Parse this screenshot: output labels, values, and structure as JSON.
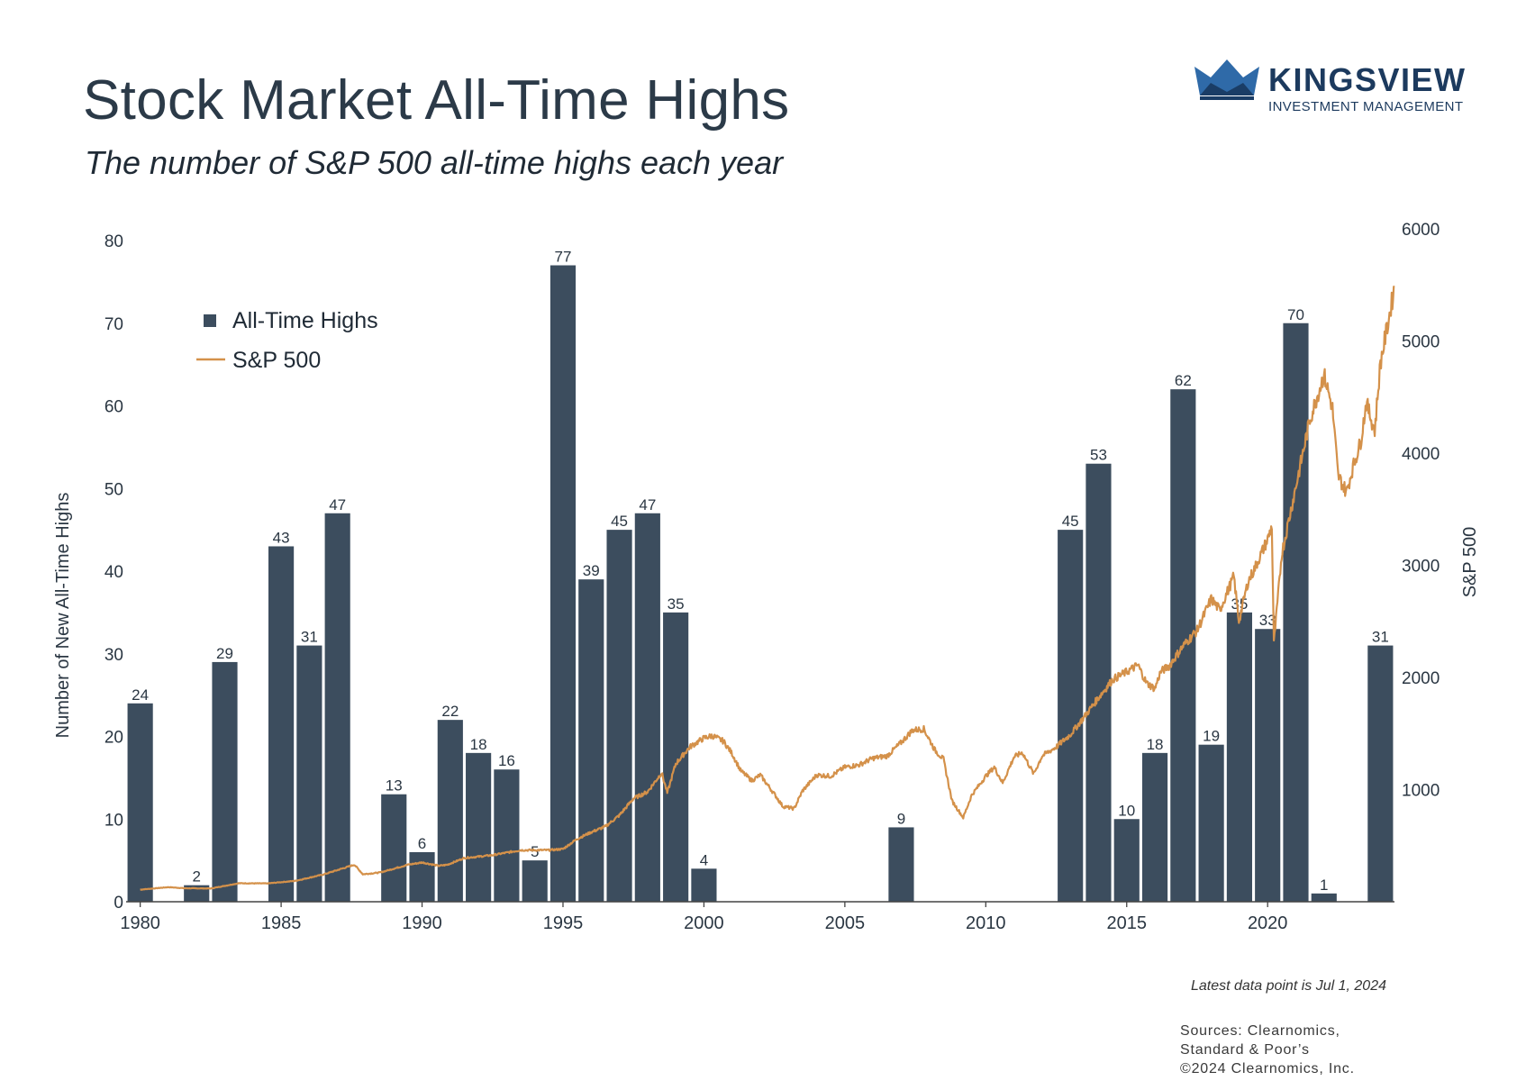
{
  "header": {
    "title": "Stock Market All-Time Highs",
    "subtitle": "The number of S&P 500 all-time highs each year"
  },
  "logo": {
    "name": "KINGSVIEW",
    "tagline": "INVESTMENT MANAGEMENT"
  },
  "footnote": "Latest data point is Jul 1, 2024",
  "sources": [
    "Sources: Clearnomics,",
    "Standard & Poor’s",
    "©2024 Clearnomics, Inc."
  ],
  "colors": {
    "bar": "#3c4d5e",
    "line": "#d4914a",
    "text": "#2a3642"
  },
  "chart_data": {
    "type": "bar",
    "title": "Stock Market All-Time Highs",
    "subtitle": "The number of S&P 500 all-time highs each year",
    "ylabel": "Number of New All-Time Highs",
    "y2label": "S&P 500",
    "ylim": [
      0,
      80
    ],
    "y2lim": [
      0,
      6000
    ],
    "yticks": [
      0,
      10,
      20,
      30,
      40,
      50,
      60,
      70,
      80
    ],
    "y2ticks": [
      1000,
      2000,
      3000,
      4000,
      5000,
      6000
    ],
    "xticks": [
      1980,
      1985,
      1990,
      1995,
      2000,
      2005,
      2010,
      2015,
      2020
    ],
    "legend_position": "top-left",
    "series": [
      {
        "name": "All-Time Highs",
        "type": "bar",
        "data": [
          {
            "year": 1980,
            "value": 24
          },
          {
            "year": 1982,
            "value": 2
          },
          {
            "year": 1983,
            "value": 29
          },
          {
            "year": 1985,
            "value": 43
          },
          {
            "year": 1986,
            "value": 31
          },
          {
            "year": 1987,
            "value": 47
          },
          {
            "year": 1989,
            "value": 13
          },
          {
            "year": 1990,
            "value": 6
          },
          {
            "year": 1991,
            "value": 22
          },
          {
            "year": 1992,
            "value": 18
          },
          {
            "year": 1993,
            "value": 16
          },
          {
            "year": 1994,
            "value": 5
          },
          {
            "year": 1995,
            "value": 77
          },
          {
            "year": 1996,
            "value": 39
          },
          {
            "year": 1997,
            "value": 45
          },
          {
            "year": 1998,
            "value": 47
          },
          {
            "year": 1999,
            "value": 35
          },
          {
            "year": 2000,
            "value": 4
          },
          {
            "year": 2007,
            "value": 9
          },
          {
            "year": 2013,
            "value": 45
          },
          {
            "year": 2014,
            "value": 53
          },
          {
            "year": 2015,
            "value": 10
          },
          {
            "year": 2016,
            "value": 18
          },
          {
            "year": 2017,
            "value": 62
          },
          {
            "year": 2018,
            "value": 19
          },
          {
            "year": 2019,
            "value": 35
          },
          {
            "year": 2020,
            "value": 33
          },
          {
            "year": 2021,
            "value": 70
          },
          {
            "year": 2022,
            "value": 1
          },
          {
            "year": 2024,
            "value": 31
          }
        ]
      },
      {
        "name": "S&P 500",
        "type": "line",
        "x": [
          1980.0,
          1981.0,
          1981.6,
          1982.5,
          1983.5,
          1984.5,
          1985.5,
          1986.5,
          1987.6,
          1987.9,
          1988.5,
          1989.5,
          1990.0,
          1990.6,
          1990.9,
          1991.5,
          1992.5,
          1993.5,
          1994.5,
          1995.0,
          1995.5,
          1996.0,
          1996.5,
          1997.0,
          1997.5,
          1998.0,
          1998.5,
          1998.7,
          1999.0,
          1999.5,
          2000.0,
          2000.3,
          2000.7,
          2001.0,
          2001.3,
          2001.7,
          2002.0,
          2002.5,
          2002.8,
          2003.2,
          2003.5,
          2004.0,
          2004.5,
          2005.0,
          2005.5,
          2006.0,
          2006.5,
          2007.0,
          2007.4,
          2007.8,
          2008.2,
          2008.5,
          2008.8,
          2009.2,
          2009.5,
          2010.0,
          2010.3,
          2010.6,
          2011.0,
          2011.3,
          2011.7,
          2012.0,
          2012.5,
          2013.0,
          2013.5,
          2014.0,
          2014.5,
          2015.0,
          2015.4,
          2015.7,
          2016.0,
          2016.2,
          2016.5,
          2017.0,
          2017.5,
          2018.0,
          2018.3,
          2018.8,
          2018.98,
          2019.3,
          2019.5,
          2020.0,
          2020.15,
          2020.22,
          2020.5,
          2021.0,
          2021.5,
          2022.0,
          2022.3,
          2022.5,
          2022.8,
          2023.0,
          2023.3,
          2023.5,
          2023.8,
          2024.0,
          2024.3,
          2024.5
        ],
        "y": [
          108,
          130,
          120,
          118,
          165,
          163,
          186,
          243,
          330,
          245,
          260,
          330,
          350,
          320,
          330,
          390,
          415,
          460,
          460,
          470,
          560,
          620,
          670,
          770,
          920,
          980,
          1150,
          970,
          1230,
          1380,
          1460,
          1480,
          1430,
          1320,
          1170,
          1080,
          1130,
          960,
          850,
          830,
          990,
          1130,
          1120,
          1200,
          1220,
          1280,
          1300,
          1420,
          1530,
          1540,
          1350,
          1270,
          900,
          750,
          950,
          1120,
          1200,
          1060,
          1290,
          1330,
          1140,
          1300,
          1380,
          1490,
          1650,
          1820,
          1980,
          2050,
          2110,
          1950,
          1900,
          2050,
          2100,
          2280,
          2420,
          2700,
          2600,
          2900,
          2500,
          2850,
          2950,
          3230,
          3350,
          2300,
          3100,
          3700,
          4300,
          4700,
          4400,
          3800,
          3650,
          3850,
          4100,
          4450,
          4200,
          4800,
          5200,
          5480
        ]
      }
    ]
  }
}
